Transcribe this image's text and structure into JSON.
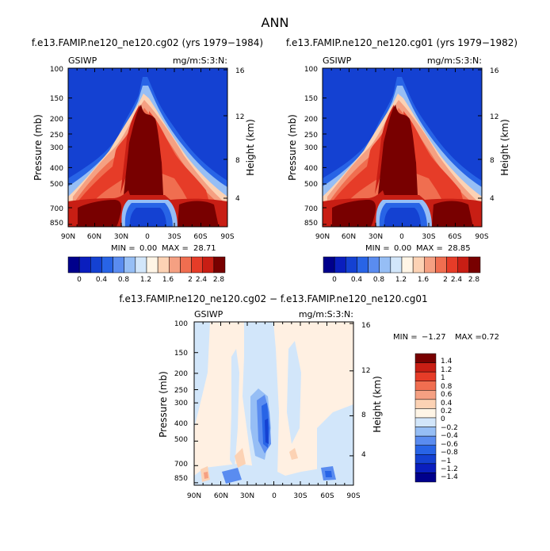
{
  "page": {
    "title": "ANN"
  },
  "colors": {
    "full_scale": [
      "#00008c",
      "#0a1ebe",
      "#1441d2",
      "#2864e6",
      "#5a8cf0",
      "#96bef5",
      "#d2e6fa",
      "#fff5e6",
      "#fcd2b4",
      "#f5a082",
      "#f06e50",
      "#e63c28",
      "#c81e14",
      "#780000"
    ],
    "diff_scale": [
      "#00008c",
      "#0a1ebe",
      "#1441d2",
      "#2864e6",
      "#5a8cf0",
      "#96bef5",
      "#d2e6fa",
      "#fff5e6",
      "#fcd2b4",
      "#f5a082",
      "#f06e50",
      "#e63c28",
      "#c81e14",
      "#780000"
    ]
  },
  "chart_data": [
    {
      "type": "heatmap",
      "title": "f.e13.FAMIP.ne120_ne120.cg02 (yrs 1979−1984)",
      "left_label": "GSIWP",
      "right_label": "mg/m:S:3:N:",
      "ylabel": "Pressure (mb)",
      "y2label": "Height (km)",
      "x_ticks": [
        "90N",
        "60N",
        "30N",
        "0",
        "30S",
        "60S",
        "90S"
      ],
      "y_ticks": [
        "100",
        "150",
        "200",
        "250",
        "300",
        "400",
        "500",
        "700",
        "850"
      ],
      "y2_ticks": [
        "16",
        "12",
        "8",
        "4"
      ],
      "stats": {
        "min_label": "MIN =",
        "min": "0.00",
        "max_label": "MAX =",
        "max": "28.71"
      },
      "colorbar_levels": [
        "0",
        "0.4",
        "0.8",
        "1.2",
        "1.6",
        "2",
        "2.4",
        "2.8"
      ]
    },
    {
      "type": "heatmap",
      "title": "f.e13.FAMIP.ne120_ne120.cg01 (yrs 1979−1982)",
      "left_label": "GSIWP",
      "right_label": "mg/m:S:3:N:",
      "ylabel": "Pressure (mb)",
      "y2label": "Height (km)",
      "x_ticks": [
        "90N",
        "60N",
        "30N",
        "0",
        "30S",
        "60S",
        "90S"
      ],
      "y_ticks": [
        "100",
        "150",
        "200",
        "250",
        "300",
        "400",
        "500",
        "700",
        "850"
      ],
      "y2_ticks": [
        "16",
        "12",
        "8",
        "4"
      ],
      "stats": {
        "min_label": "MIN =",
        "min": "0.00",
        "max_label": "MAX =",
        "max": "28.85"
      },
      "colorbar_levels": [
        "0",
        "0.4",
        "0.8",
        "1.2",
        "1.6",
        "2",
        "2.4",
        "2.8"
      ]
    },
    {
      "type": "heatmap",
      "title": "f.e13.FAMIP.ne120_ne120.cg02 − f.e13.FAMIP.ne120_ne120.cg01",
      "left_label": "GSIWP",
      "right_label": "mg/m:S:3:N:",
      "ylabel": "Pressure (mb)",
      "y2label": "Height (km)",
      "x_ticks": [
        "90N",
        "60N",
        "30N",
        "0",
        "30S",
        "60S",
        "90S"
      ],
      "y_ticks": [
        "100",
        "150",
        "200",
        "250",
        "300",
        "400",
        "500",
        "700",
        "850"
      ],
      "y2_ticks": [
        "16",
        "12",
        "8",
        "4"
      ],
      "stats": {
        "min_label": "MIN =",
        "min": "−1.27",
        "max_label": "MAX =",
        "max": "0.72"
      },
      "colorbar_levels": [
        "1.4",
        "1.2",
        "1",
        "0.8",
        "0.6",
        "0.4",
        "0.2",
        "0",
        "−0.2",
        "−0.4",
        "−0.6",
        "−0.8",
        "−1",
        "−1.2",
        "−1.4"
      ]
    }
  ]
}
